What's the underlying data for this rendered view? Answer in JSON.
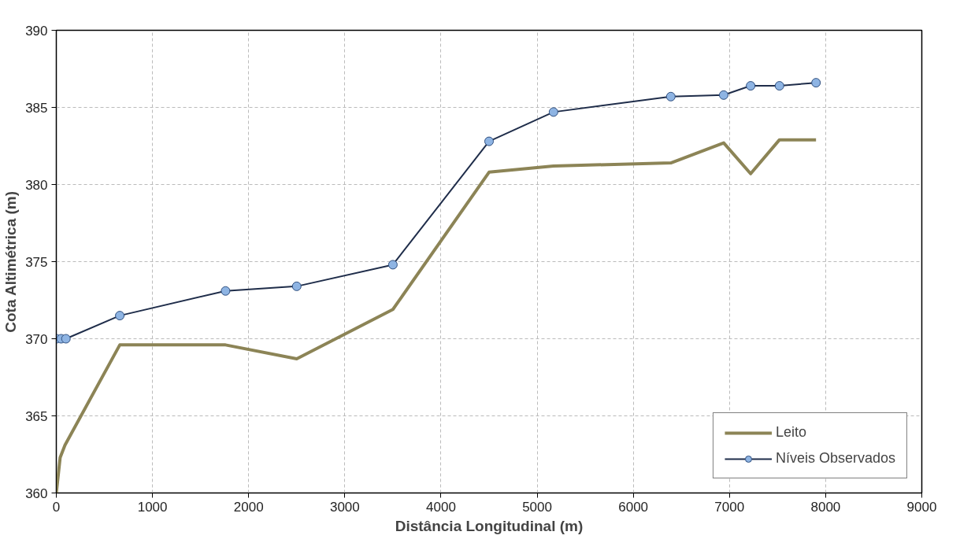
{
  "chart_data": {
    "type": "line",
    "xlabel": "Distância Longitudinal (m)",
    "ylabel": "Cota Altimétrica (m)",
    "xlim": [
      0,
      9000
    ],
    "xticks": [
      0,
      1000,
      2000,
      3000,
      4000,
      5000,
      6000,
      7000,
      8000,
      9000
    ],
    "ylim": [
      360,
      390
    ],
    "yticks": [
      360,
      365,
      370,
      375,
      380,
      385,
      390
    ],
    "grid": true,
    "legend": "bottom right",
    "line_style": "solid",
    "series": [
      {
        "name": "Leito",
        "color": "#8c8456",
        "marker": "none",
        "x": [
          0,
          40,
          90,
          660,
          1760,
          2500,
          3500,
          4500,
          5170,
          6390,
          6940,
          7220,
          7520,
          7900
        ],
        "values": [
          360,
          362.3,
          363.1,
          369.6,
          369.6,
          368.7,
          371.9,
          380.8,
          381.2,
          381.4,
          382.7,
          380.7,
          382.9,
          382.9
        ]
      },
      {
        "name": "Níveis Observados",
        "color": "#1f2d4a",
        "marker": "circle",
        "x": [
          0,
          50,
          100,
          660,
          1760,
          2500,
          3500,
          4500,
          5170,
          6390,
          6940,
          7220,
          7520,
          7900
        ],
        "values": [
          370,
          370,
          370,
          371.5,
          373.1,
          373.4,
          374.8,
          382.8,
          384.7,
          385.7,
          385.8,
          386.4,
          386.4,
          386.6
        ]
      }
    ]
  }
}
